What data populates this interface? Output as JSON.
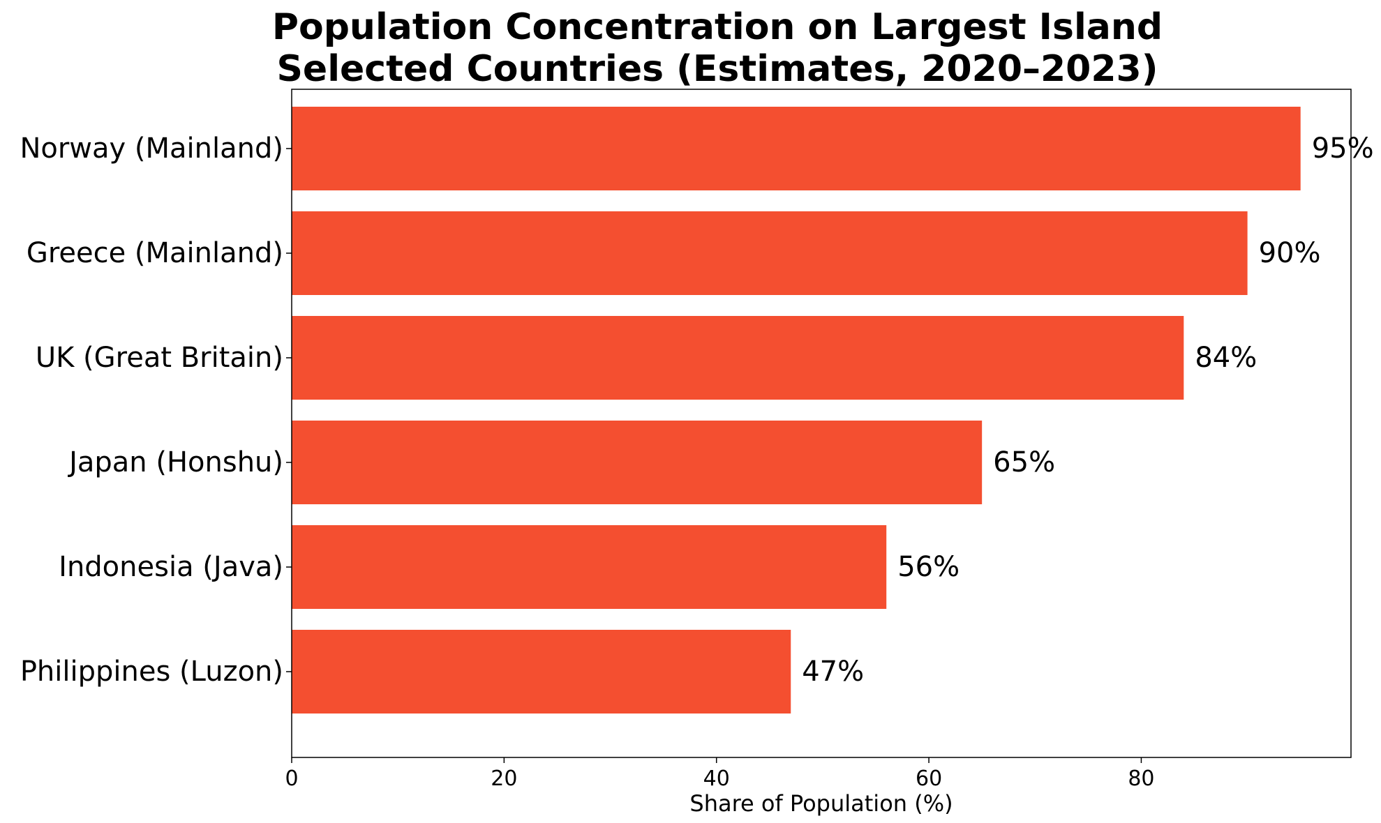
{
  "chart_data": {
    "type": "bar",
    "orientation": "horizontal",
    "title": "Population Concentration on Largest Island",
    "subtitle": "Selected Countries (Estimates, 2020–2023)",
    "xlabel": "Share of Population (%)",
    "ylabel": "",
    "xlim": [
      0,
      99.75
    ],
    "xticks": [
      0,
      20,
      40,
      60,
      80
    ],
    "categories": [
      "Norway (Mainland)",
      "Greece (Mainland)",
      "UK (Great Britain)",
      "Japan (Honshu)",
      "Indonesia (Java)",
      "Philippines (Luzon)"
    ],
    "values": [
      95,
      90,
      84,
      65,
      56,
      47
    ],
    "value_labels": [
      "95%",
      "90%",
      "84%",
      "65%",
      "56%",
      "47%"
    ],
    "bar_color": "#f44f30",
    "grid": false,
    "legend": "none"
  }
}
